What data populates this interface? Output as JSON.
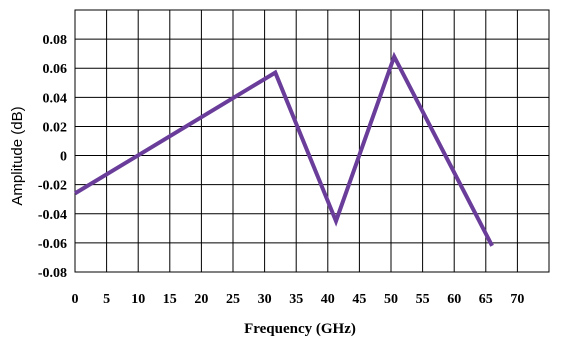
{
  "chart_data": {
    "type": "line",
    "xlabel": "Frequency (GHz)",
    "ylabel": "Amplitude (dB)",
    "xlim": [
      0,
      75
    ],
    "ylim": [
      -0.08,
      0.1
    ],
    "x_ticks": [
      "0",
      "5",
      "10",
      "15",
      "20",
      "25",
      "30",
      "35",
      "40",
      "45",
      "50",
      "55",
      "60",
      "65",
      "70"
    ],
    "y_ticks": [
      "-0.08",
      "-0.06",
      "-0.04",
      "-0.02",
      "0",
      "0.02",
      "0.04",
      "0.06",
      "0.08"
    ],
    "grid": true,
    "series": [
      {
        "color": "#6a3d9a",
        "x": [
          0,
          31.7,
          41.3,
          50.5,
          66.0
        ],
        "y": [
          -0.026,
          0.057,
          -0.045,
          0.068,
          -0.062
        ]
      }
    ]
  }
}
